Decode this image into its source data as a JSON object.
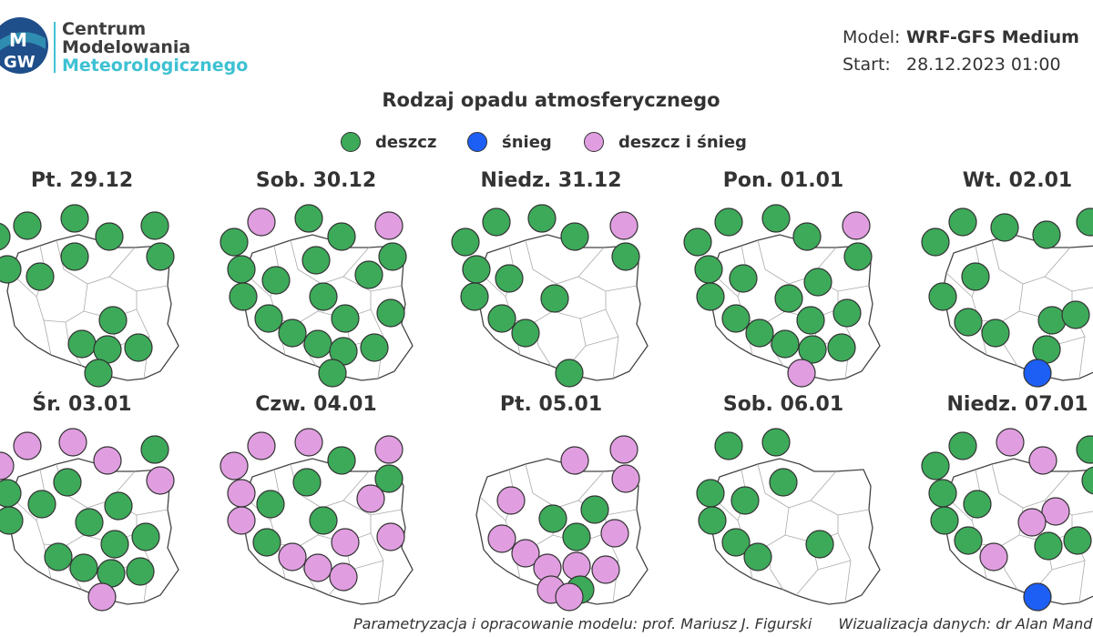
{
  "header": {
    "org_line1": "Centrum",
    "org_line2": "Modelowania",
    "org_line3": "Meteorologicznego",
    "logo_text_top": "M",
    "logo_text_bottom": "GW",
    "model_label": "Model:",
    "model_value": "WRF-GFS Medium",
    "start_label": "Start:",
    "start_value": "28.12.2023 01:00"
  },
  "title": "Rodzaj opadu atmosferycznego",
  "legend": [
    {
      "key": "rain",
      "label": "deszcz",
      "color": "#3daa5a"
    },
    {
      "key": "snow",
      "label": "śnieg",
      "color": "#1d5ff5"
    },
    {
      "key": "mixed",
      "label": "deszcz i śnieg",
      "color": "#e09ee0"
    }
  ],
  "panels": [
    {
      "label": "Pt. 29.12",
      "dots": [
        "rain",
        "rain",
        "rain",
        "rain",
        "rain",
        "rain",
        "rain",
        "rain",
        "rain",
        "rain",
        "rain",
        "rain",
        "rain",
        "rain"
      ]
    },
    {
      "label": "Sob. 30.12",
      "dots": [
        "mixed",
        "rain",
        "rain",
        "mixed",
        "rain",
        "rain",
        "rain",
        "rain",
        "rain",
        "rain",
        "rain",
        "rain",
        "rain",
        "rain",
        "rain",
        "rain",
        "rain",
        "rain",
        "rain",
        "rain"
      ]
    },
    {
      "label": "Niedz. 31.12",
      "dots": [
        "rain",
        "rain",
        "rain",
        "rain",
        "mixed",
        "rain",
        "rain",
        "rain",
        "rain",
        "rain",
        "rain",
        "rain",
        "rain"
      ]
    },
    {
      "label": "Pon. 01.01",
      "dots": [
        "rain",
        "rain",
        "rain",
        "rain",
        "mixed",
        "rain",
        "rain",
        "rain",
        "rain",
        "rain",
        "rain",
        "rain",
        "rain",
        "rain",
        "rain",
        "rain",
        "rain",
        "rain",
        "mixed"
      ]
    },
    {
      "label": "Wt. 02.01",
      "dots": [
        "rain",
        "rain",
        "rain",
        "rain",
        "rain",
        "rain",
        "rain",
        "rain",
        "rain",
        "rain",
        "rain",
        "rain",
        "snow"
      ]
    },
    {
      "label": "Śr. 03.01",
      "dots": [
        "mixed",
        "mixed",
        "mixed",
        "mixed",
        "rain",
        "mixed",
        "rain",
        "rain",
        "rain",
        "rain",
        "rain",
        "rain",
        "rain",
        "rain",
        "rain",
        "rain",
        "rain",
        "rain",
        "mixed"
      ]
    },
    {
      "label": "Czw. 04.01",
      "dots": [
        "mixed",
        "mixed",
        "mixed",
        "rain",
        "mixed",
        "rain",
        "mixed",
        "rain",
        "rain",
        "mixed",
        "mixed",
        "rain",
        "rain",
        "mixed",
        "mixed",
        "mixed",
        "mixed",
        "mixed"
      ]
    },
    {
      "label": "Pt. 05.01",
      "dots": [
        "mixed",
        "mixed",
        "mixed",
        "mixed",
        "rain",
        "rain",
        "mixed",
        "rain",
        "mixed",
        "mixed",
        "mixed",
        "mixed",
        "mixed",
        "mixed",
        "rain",
        "mixed"
      ]
    },
    {
      "label": "Sob. 06.01",
      "dots": [
        "rain",
        "rain",
        "rain",
        "rain",
        "rain",
        "rain",
        "rain",
        "rain",
        "rain"
      ]
    },
    {
      "label": "Niedz. 07.01",
      "dots": [
        "rain",
        "mixed",
        "rain",
        "mixed",
        "rain",
        "rain",
        "rain",
        "rain",
        "mixed",
        "rain",
        "mixed",
        "rain",
        "rain",
        "rain",
        "mixed",
        "snow"
      ]
    }
  ],
  "credits": {
    "model": "Parametryzacja i opracowanie modelu: prof. Mariusz J. Figurski",
    "viz": "Wizualizacja danych: dr Alan Mandal"
  }
}
